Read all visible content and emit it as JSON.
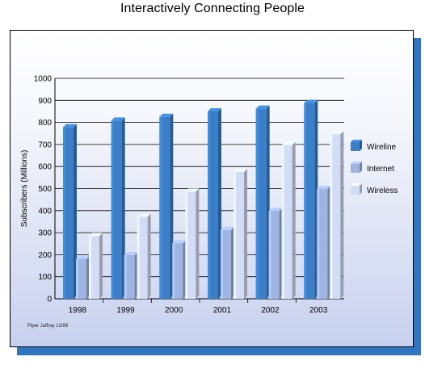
{
  "page_title": "Interactively Connecting People",
  "source_note": "Piper Jaffray 12/99",
  "colors": {
    "wireline": "#3a7fc8",
    "internet": "#9fb4e0",
    "wireless": "#d2dcf4",
    "shadow": "#2f76c2"
  },
  "chart_data": {
    "type": "bar",
    "title": "",
    "xlabel": "",
    "ylabel": "Subscribers (Millions)",
    "ylim": [
      0,
      1000
    ],
    "yticks": [
      0,
      100,
      200,
      300,
      400,
      500,
      600,
      700,
      800,
      900,
      1000
    ],
    "categories": [
      "1998",
      "1999",
      "2000",
      "2001",
      "2002",
      "2003"
    ],
    "series": [
      {
        "name": "Wireline",
        "values": [
          778,
          808,
          825,
          850,
          862,
          888
        ]
      },
      {
        "name": "Internet",
        "values": [
          180,
          198,
          252,
          312,
          398,
          498
        ]
      },
      {
        "name": "Wireless",
        "values": [
          285,
          372,
          486,
          575,
          697,
          747
        ]
      }
    ],
    "legend_position": "right",
    "grid": true
  }
}
